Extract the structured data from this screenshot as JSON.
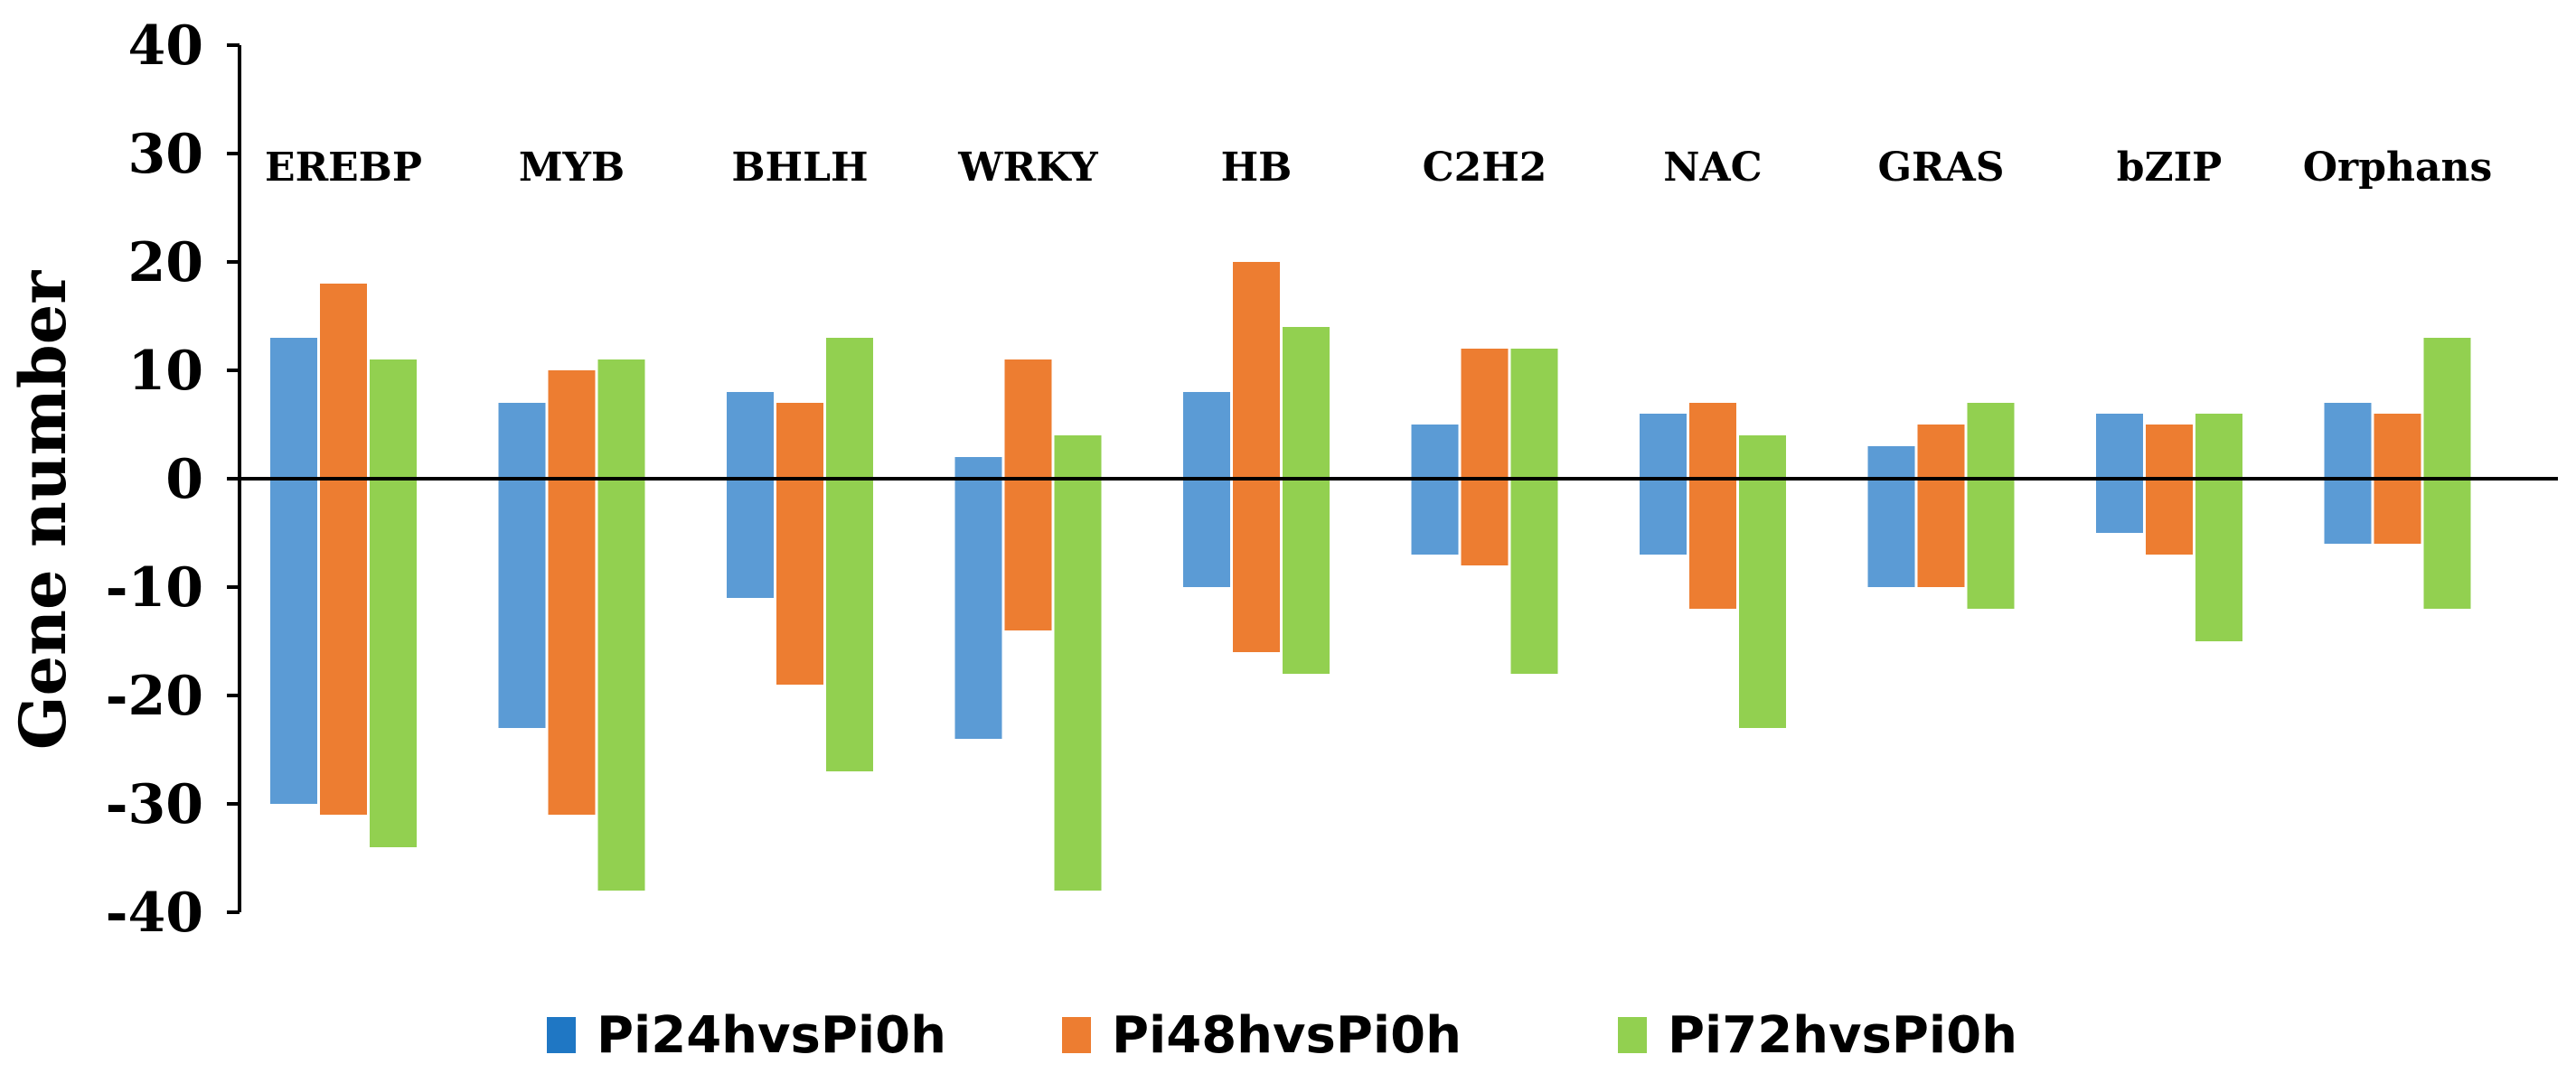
{
  "chart_data": {
    "type": "bar",
    "ylabel": "Gene number",
    "ylim": [
      -40,
      40
    ],
    "yticks": [
      40,
      30,
      20,
      10,
      0,
      -10,
      -20,
      -30,
      -40
    ],
    "categories": [
      "EREBP",
      "MYB",
      "BHLH",
      "WRKY",
      "HB",
      "C2H2",
      "NAC",
      "GRAS",
      "bZIP",
      "Orphans"
    ],
    "series": [
      {
        "name": "Pi24hvsPi0h",
        "color": "#5b9bd5",
        "legend_color": "#1f77c4",
        "up": [
          13,
          7,
          8,
          2,
          8,
          5,
          6,
          3,
          6,
          7
        ],
        "down": [
          -30,
          -23,
          -11,
          -24,
          -10,
          -7,
          -7,
          -10,
          -5,
          -6
        ]
      },
      {
        "name": "Pi48hvsPi0h",
        "color": "#ed7d31",
        "legend_color": "#ed7d31",
        "up": [
          18,
          10,
          7,
          11,
          20,
          12,
          7,
          5,
          5,
          6
        ],
        "down": [
          -31,
          -31,
          -19,
          -14,
          -16,
          -8,
          -12,
          -10,
          -7,
          -6
        ]
      },
      {
        "name": "Pi72hvsPi0h",
        "color": "#92d050",
        "legend_color": "#92d050",
        "up": [
          11,
          11,
          13,
          4,
          14,
          12,
          4,
          7,
          6,
          13
        ],
        "down": [
          -34,
          -38,
          -27,
          -38,
          -18,
          -18,
          -23,
          -12,
          -15,
          -12
        ]
      }
    ],
    "legend_position": "bottom",
    "grid": false
  }
}
